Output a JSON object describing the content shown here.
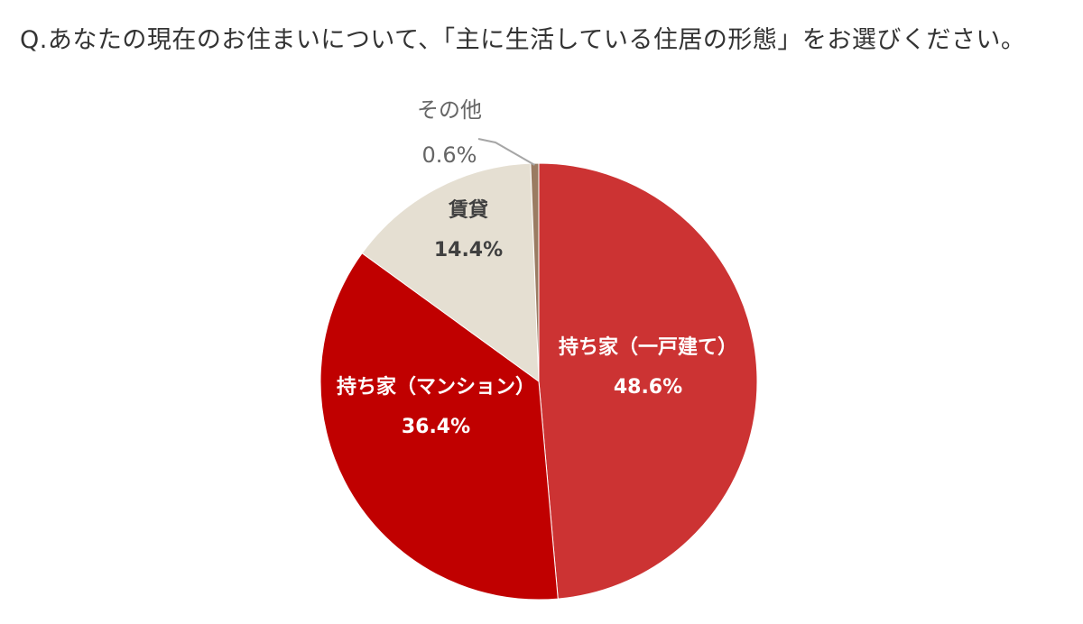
{
  "question": "Q.あなたの現在のお住まいについて、「主に生活している住居の形態」をお選びください。",
  "chart_data": {
    "type": "pie",
    "title": "Q.あなたの現在のお住まいについて、「主に生活している住居の形態」をお選びください。",
    "slices": [
      {
        "label": "持ち家（一戸建て）",
        "value": 48.6,
        "display": "48.6%",
        "color": "#cc3333",
        "text_color": "#ffffff"
      },
      {
        "label": "持ち家（マンション）",
        "value": 36.4,
        "display": "36.4%",
        "color": "#c00000",
        "text_color": "#ffffff"
      },
      {
        "label": "賃貸",
        "value": 14.4,
        "display": "14.4%",
        "color": "#e5dfd2",
        "text_color": "#404040"
      },
      {
        "label": "その他",
        "value": 0.6,
        "display": "0.6%",
        "color": "#9a7b62",
        "text_color": "#666666"
      }
    ],
    "start_angle": "12 o'clock",
    "direction": "clockwise",
    "legend": "none"
  }
}
